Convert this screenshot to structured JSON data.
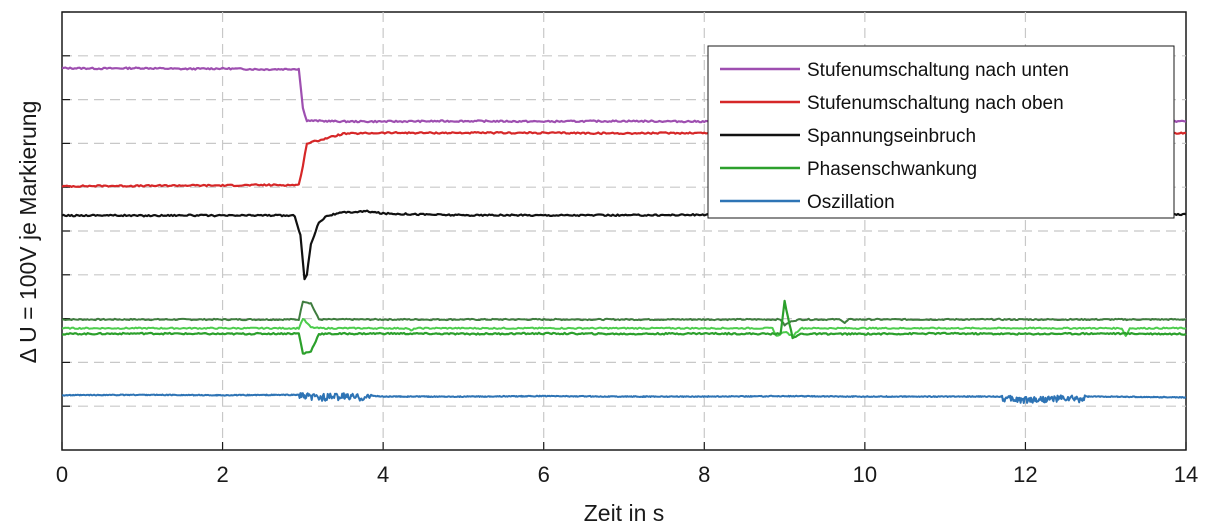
{
  "chart_data": {
    "type": "line",
    "title": "",
    "xlabel": "Zeit in s",
    "ylabel": "Δ U = 100V je Markierung",
    "xlim": [
      0,
      14
    ],
    "ylim": [
      0,
      10
    ],
    "x_ticks": [
      0,
      2,
      4,
      6,
      8,
      10,
      12,
      14
    ],
    "x_tick_labels": [
      "0",
      "2",
      "4",
      "6",
      "8",
      "10",
      "12",
      "14"
    ],
    "y_ticks": [
      1,
      2,
      3,
      4,
      5,
      6,
      7,
      8,
      9,
      10
    ],
    "y_tick_labels_shown": false,
    "grid": true,
    "legend_position": "top-right",
    "series": [
      {
        "name": "Stufenumschaltung nach unten",
        "color": "#9e4fb0",
        "x": [
          0,
          0.5,
          1,
          1.5,
          2,
          2.5,
          2.95,
          3.0,
          3.05,
          3.5,
          4,
          5,
          6,
          7,
          8,
          9,
          10,
          11,
          12,
          13,
          14
        ],
        "y": [
          8.72,
          8.71,
          8.72,
          8.7,
          8.71,
          8.69,
          8.7,
          7.8,
          7.52,
          7.5,
          7.5,
          7.51,
          7.5,
          7.51,
          7.5,
          7.51,
          7.5,
          7.5,
          7.51,
          7.5,
          7.5
        ]
      },
      {
        "name": "Stufenumschaltung nach oben",
        "color": "#d62728",
        "x": [
          0,
          0.5,
          1,
          1.5,
          2,
          2.5,
          2.95,
          3.0,
          3.05,
          3.3,
          3.5,
          4,
          5,
          6,
          7,
          8,
          9,
          10,
          11,
          12,
          13,
          14
        ],
        "y": [
          6.02,
          6.03,
          6.03,
          6.04,
          6.04,
          6.05,
          6.05,
          6.5,
          7.0,
          7.12,
          7.22,
          7.24,
          7.24,
          7.24,
          7.23,
          7.24,
          7.23,
          7.24,
          7.23,
          7.24,
          7.23,
          7.23
        ]
      },
      {
        "name": "Spannungseinbruch",
        "color": "#111111",
        "x": [
          0,
          0.5,
          1,
          1.5,
          2,
          2.5,
          2.9,
          2.97,
          3.02,
          3.05,
          3.1,
          3.2,
          3.3,
          3.5,
          3.8,
          4,
          5,
          6,
          7,
          8,
          9,
          10,
          11,
          12,
          13,
          14
        ],
        "y": [
          5.35,
          5.36,
          5.35,
          5.36,
          5.35,
          5.36,
          5.35,
          4.9,
          3.9,
          4.0,
          4.7,
          5.2,
          5.35,
          5.42,
          5.45,
          5.4,
          5.36,
          5.36,
          5.36,
          5.37,
          5.36,
          5.37,
          5.36,
          5.37,
          5.36,
          5.38
        ]
      },
      {
        "name": "Phasenschwankung",
        "color": "#2ca02c",
        "x": [
          0,
          1,
          2,
          2.95,
          3.0,
          3.1,
          3.2,
          4,
          5,
          6,
          7,
          8,
          8.95,
          9.0,
          9.1,
          9.2,
          10,
          11,
          12,
          13,
          14
        ],
        "y": [
          2.65,
          2.66,
          2.65,
          2.66,
          2.2,
          2.25,
          2.65,
          2.66,
          2.65,
          2.66,
          2.65,
          2.66,
          2.65,
          3.4,
          2.55,
          2.65,
          2.65,
          2.66,
          2.65,
          2.66,
          2.65
        ]
      }
    ],
    "decorative_series": [
      {
        "name": "Oszillation",
        "color": "#2e74b5",
        "x": [
          0,
          1,
          2,
          2.95,
          3.0,
          3.2,
          3.5,
          3.8,
          3.85,
          4,
          5,
          6,
          7,
          8,
          9,
          10,
          11,
          11.7,
          11.75,
          12,
          12.5,
          12.7,
          12.75,
          13,
          14
        ],
        "y": [
          1.25,
          1.26,
          1.25,
          1.26,
          1.22,
          1.2,
          1.22,
          1.2,
          1.24,
          1.22,
          1.22,
          1.23,
          1.22,
          1.22,
          1.23,
          1.22,
          1.22,
          1.22,
          1.17,
          1.15,
          1.18,
          1.16,
          1.22,
          1.22,
          1.2
        ]
      }
    ],
    "extra_green_traces_color": [
      "#3f7d3f",
      "#4ccc4c"
    ]
  }
}
